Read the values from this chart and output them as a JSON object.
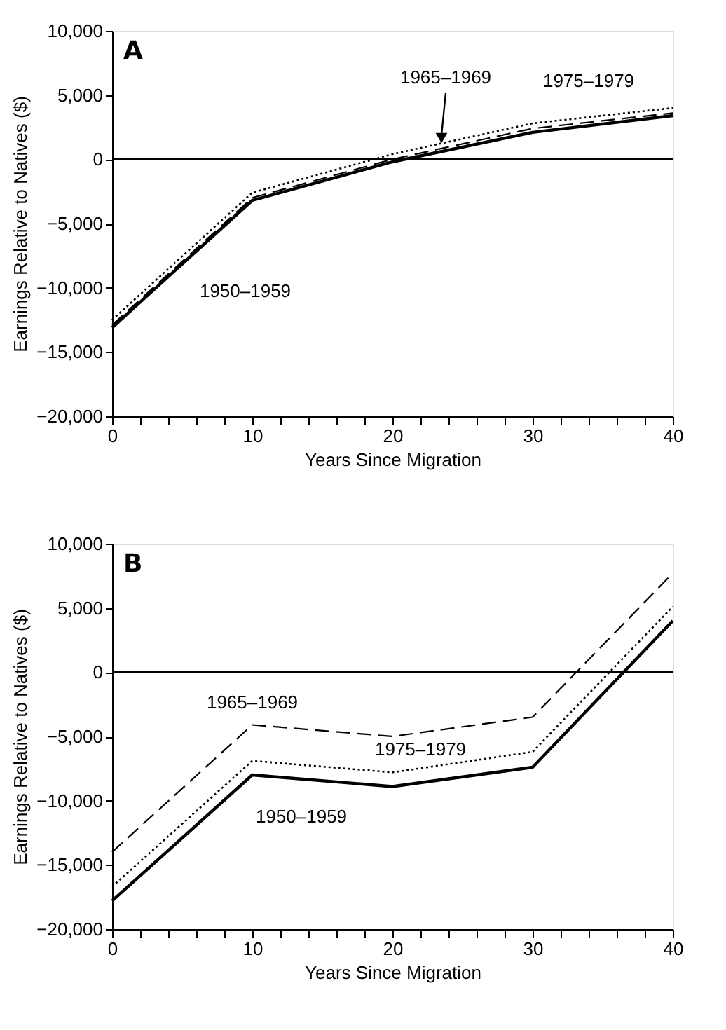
{
  "chart_data": [
    {
      "type": "line",
      "title": "A",
      "xlabel": "Years Since Migration",
      "ylabel": "Earnings Relative to Natives ($)",
      "x": [
        0,
        10,
        20,
        30,
        40
      ],
      "series": [
        {
          "name": "1950–1959",
          "color": "#000000",
          "line_style": "solid",
          "values": [
            -13100,
            -3200,
            -200,
            2100,
            3400
          ]
        },
        {
          "name": "1965–1969",
          "color": "#000000",
          "line_style": "dashed",
          "values": [
            -12900,
            -3000,
            0,
            2400,
            3600
          ]
        },
        {
          "name": "1975–1979",
          "color": "#000000",
          "line_style": "dotted",
          "values": [
            -12500,
            -2600,
            400,
            2800,
            4000
          ]
        }
      ],
      "xlim": [
        0,
        40
      ],
      "ylim": [
        -20000,
        10000
      ],
      "xticks": [
        0,
        {
          "value": 2,
          "label": null
        },
        {
          "value": 4,
          "label": null
        },
        {
          "value": 6,
          "label": null
        },
        {
          "value": 8,
          "label": null
        },
        10,
        {
          "value": 12,
          "label": null
        },
        {
          "value": 14,
          "label": null
        },
        {
          "value": 16,
          "label": null
        },
        {
          "value": 18,
          "label": null
        },
        20,
        {
          "value": 22,
          "label": null
        },
        {
          "value": 24,
          "label": null
        },
        {
          "value": 26,
          "label": null
        },
        {
          "value": 28,
          "label": null
        },
        30,
        {
          "value": 32,
          "label": null
        },
        {
          "value": 34,
          "label": null
        },
        {
          "value": 36,
          "label": null
        },
        {
          "value": 38,
          "label": null
        },
        40
      ],
      "yticks": [
        {
          "value": -20000,
          "label": "−20,000"
        },
        {
          "value": -15000,
          "label": "−15,000"
        },
        {
          "value": -10000,
          "label": "−10,000"
        },
        {
          "value": -5000,
          "label": "−5,000"
        },
        0,
        {
          "value": 5000,
          "label": "5,000"
        },
        {
          "value": 10000,
          "label": "10,000"
        }
      ],
      "ref_lines": [
        {
          "axis": "y",
          "value": 0,
          "color": "#000000",
          "line_style": "solid"
        }
      ],
      "grid": false,
      "legend": false,
      "marker": "none"
    },
    {
      "type": "line",
      "title": "B",
      "xlabel": "Years Since Migration",
      "ylabel": "Earnings Relative to Natives ($)",
      "x": [
        0,
        10,
        20,
        30,
        40
      ],
      "series": [
        {
          "name": "1950–1959",
          "color": "#000000",
          "line_style": "solid",
          "values": [
            -17800,
            -8000,
            -8900,
            -7400,
            4000
          ]
        },
        {
          "name": "1965–1969",
          "color": "#000000",
          "line_style": "dashed",
          "values": [
            -14000,
            -4100,
            -5000,
            -3500,
            7700
          ]
        },
        {
          "name": "1975–1979",
          "color": "#000000",
          "line_style": "dotted",
          "values": [
            -16700,
            -6900,
            -7800,
            -6200,
            5100
          ]
        }
      ],
      "xlim": [
        0,
        40
      ],
      "ylim": [
        -20000,
        10000
      ],
      "xticks": [
        0,
        {
          "value": 2,
          "label": null
        },
        {
          "value": 4,
          "label": null
        },
        {
          "value": 6,
          "label": null
        },
        {
          "value": 8,
          "label": null
        },
        10,
        {
          "value": 12,
          "label": null
        },
        {
          "value": 14,
          "label": null
        },
        {
          "value": 16,
          "label": null
        },
        {
          "value": 18,
          "label": null
        },
        20,
        {
          "value": 22,
          "label": null
        },
        {
          "value": 24,
          "label": null
        },
        {
          "value": 26,
          "label": null
        },
        {
          "value": 28,
          "label": null
        },
        30,
        {
          "value": 32,
          "label": null
        },
        {
          "value": 34,
          "label": null
        },
        {
          "value": 36,
          "label": null
        },
        {
          "value": 38,
          "label": null
        },
        40
      ],
      "yticks": [
        {
          "value": -20000,
          "label": "−20,000"
        },
        {
          "value": -15000,
          "label": "−15,000"
        },
        {
          "value": -10000,
          "label": "−10,000"
        },
        {
          "value": -5000,
          "label": "−5,000"
        },
        0,
        {
          "value": 5000,
          "label": "5,000"
        },
        {
          "value": 10000,
          "label": "10,000"
        }
      ],
      "ref_lines": [
        {
          "axis": "y",
          "value": 0,
          "color": "#000000",
          "line_style": "solid"
        }
      ],
      "grid": false,
      "legend": false,
      "marker": "none"
    }
  ]
}
